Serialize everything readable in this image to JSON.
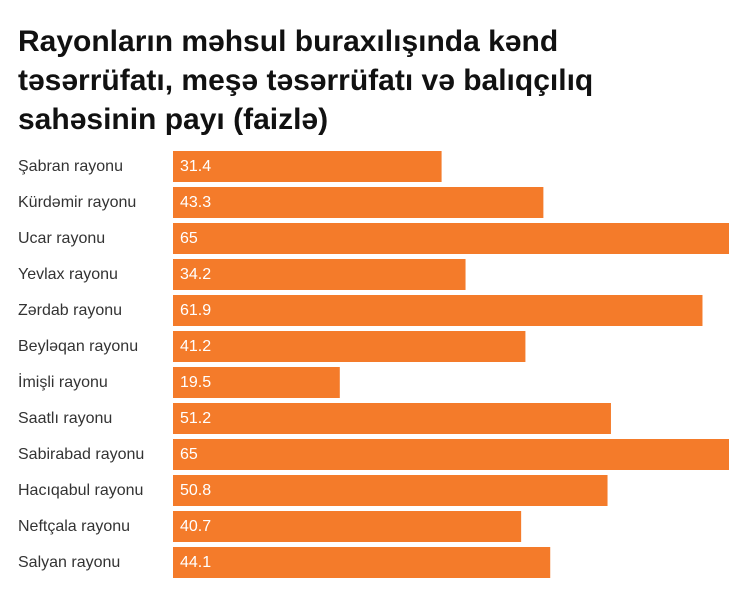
{
  "chart_data": {
    "type": "bar",
    "orientation": "horizontal",
    "title": "Rayonların məhsul buraxılışında kənd təsərrüfatı, meşə təsərrüfatı və balıqçılıq sahəsinin payı (faizlə)",
    "categories": [
      "Şabran rayonu",
      "Kürdəmir rayonu",
      "Ucar rayonu",
      "Yevlax rayonu",
      "Zərdab rayonu",
      "Beyləqan rayonu",
      "İmişli rayonu",
      "Saatlı rayonu",
      "Sabirabad rayonu",
      "Hacıqabul rayonu",
      "Neftçala rayonu",
      "Salyan rayonu"
    ],
    "values": [
      31.4,
      43.3,
      65,
      34.2,
      61.9,
      41.2,
      19.5,
      51.2,
      65,
      50.8,
      40.7,
      44.1
    ],
    "value_labels": [
      "31.4",
      "43.3",
      "65",
      "34.2",
      "61.9",
      "41.2",
      "19.5",
      "51.2",
      "65",
      "50.8",
      "40.7",
      "44.1"
    ],
    "xlim": [
      0,
      65
    ],
    "bar_color": "#f47b2a",
    "grid": false,
    "legend": "none"
  }
}
